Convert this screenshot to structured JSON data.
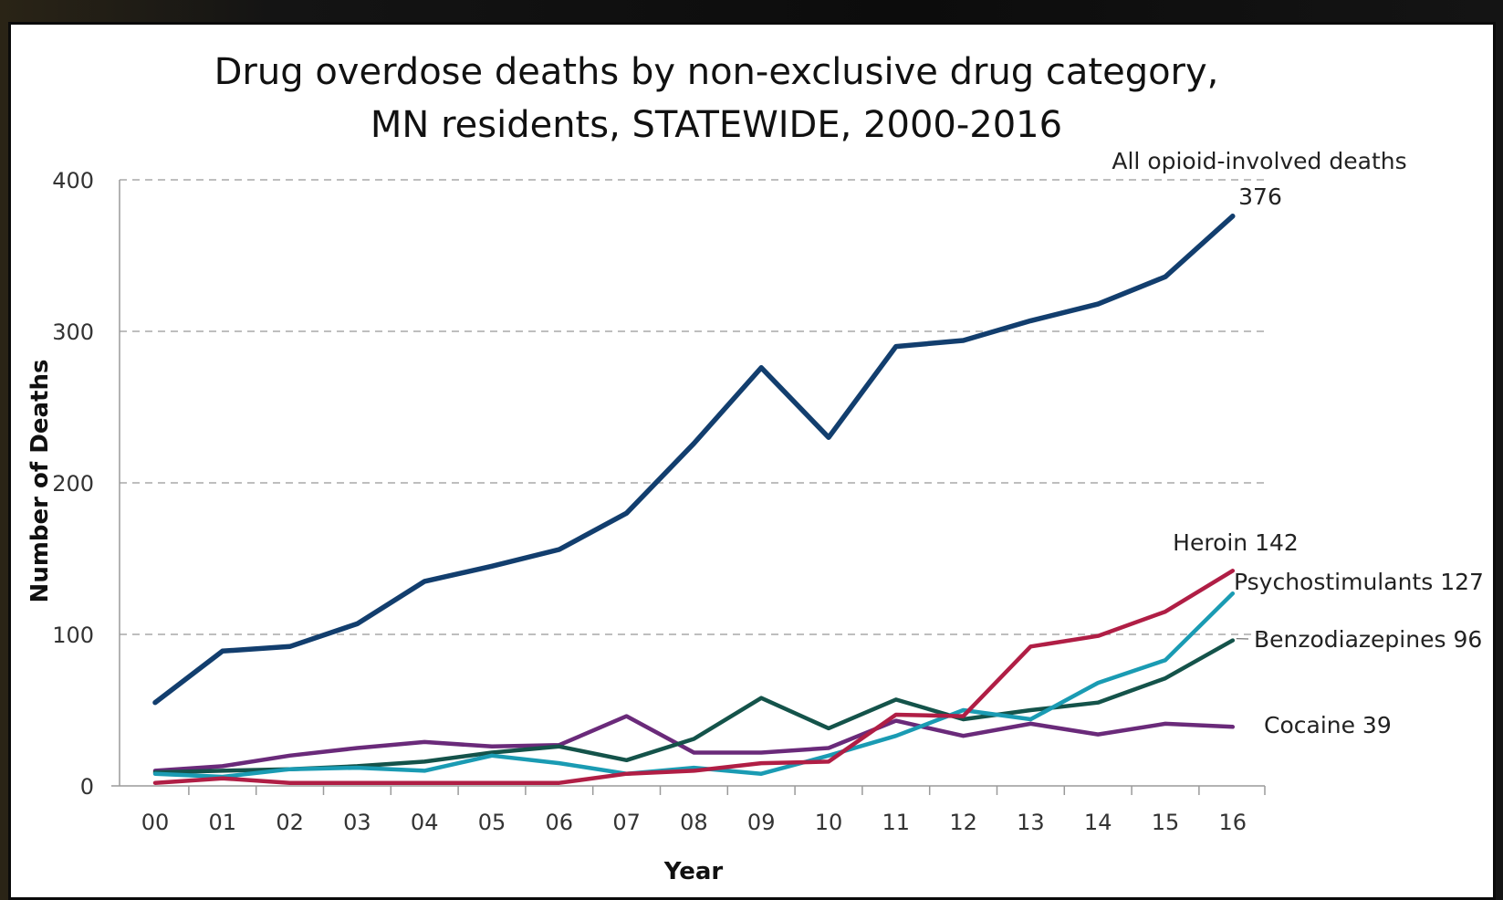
{
  "chart_data": {
    "type": "line",
    "title": "Drug overdose deaths by non-exclusive drug category,",
    "subtitle": "MN residents, STATEWIDE, 2000-2016",
    "xlabel": "Year",
    "ylabel": "Number of Deaths",
    "ylim": [
      0,
      400
    ],
    "yticks": [
      "0",
      "100",
      "200",
      "300",
      "400"
    ],
    "grid": "horizontal-dashed",
    "categories": [
      "00",
      "01",
      "02",
      "03",
      "04",
      "05",
      "06",
      "07",
      "08",
      "09",
      "10",
      "11",
      "12",
      "13",
      "14",
      "15",
      "16"
    ],
    "series": [
      {
        "name": "All opioid-involved deaths",
        "color": "#123e6e",
        "values": [
          55,
          89,
          92,
          107,
          135,
          145,
          156,
          180,
          226,
          276,
          230,
          290,
          294,
          307,
          318,
          336,
          376
        ]
      },
      {
        "name": "Heroin",
        "color": "#b01e45",
        "values": [
          2,
          5,
          2,
          2,
          2,
          2,
          2,
          8,
          10,
          15,
          16,
          47,
          46,
          92,
          99,
          115,
          142
        ]
      },
      {
        "name": "Psychostimulants",
        "color": "#1a9bb3",
        "values": [
          8,
          6,
          11,
          12,
          10,
          20,
          15,
          8,
          12,
          8,
          20,
          33,
          50,
          44,
          68,
          83,
          127
        ]
      },
      {
        "name": "Benzodiazepines",
        "color": "#14534a",
        "values": [
          9,
          10,
          11,
          13,
          16,
          22,
          26,
          17,
          31,
          58,
          38,
          57,
          44,
          50,
          55,
          71,
          96
        ]
      },
      {
        "name": "Cocaine",
        "color": "#6a2a7a",
        "values": [
          10,
          13,
          20,
          25,
          29,
          26,
          27,
          46,
          22,
          22,
          25,
          43,
          33,
          41,
          34,
          41,
          39
        ]
      }
    ],
    "annotations": [
      {
        "text": "All opioid-involved deaths",
        "series": 0
      },
      {
        "text": "376",
        "series": 0
      },
      {
        "text": "Heroin 142",
        "series": 1
      },
      {
        "text": "Psychostimulants 127",
        "series": 2
      },
      {
        "text": "Benzodiazepines 96",
        "series": 3
      },
      {
        "text": "Cocaine 39",
        "series": 4
      }
    ]
  }
}
